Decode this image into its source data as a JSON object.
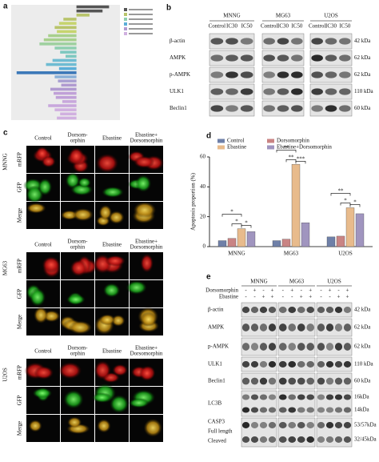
{
  "panel_labels": [
    "a",
    "b",
    "c",
    "d",
    "e"
  ],
  "chart_data": [
    {
      "type": "hbar",
      "values": [
        3,
        2.4,
        1.2,
        -1.2,
        -1.6,
        -2,
        -1.8,
        -2.6,
        -3,
        -3.4,
        -2,
        -1.5,
        -1,
        -2.2,
        -2.8,
        -1.6,
        -5.5,
        -2,
        -1.7,
        -1.4,
        -2.4,
        -2.1,
        -1.9,
        -1.3,
        -2.6,
        -2,
        -1.5,
        -1.8
      ],
      "colors": [
        "#555555",
        "#555555",
        "#b8c46a",
        "#b8c46a",
        "#c6d46e",
        "#b8c46a",
        "#c6d46e",
        "#a8d08d",
        "#a8d08d",
        "#9fd0a0",
        "#8fcfb0",
        "#7ec8c0",
        "#7ec8c0",
        "#6fbcd2",
        "#6fbcd2",
        "#5aaed8",
        "#3b78b8",
        "#8ab0d8",
        "#a9a0d2",
        "#b09ad0",
        "#b09ad0",
        "#c0a0d8",
        "#c0a0d8",
        "#c8a8dc",
        "#c8a8dc",
        "#d0b0e0",
        "#d0b0e0",
        "#d0b0e0"
      ],
      "xlim": [
        -6,
        4
      ]
    },
    {
      "type": "bar",
      "y_label": "Apoptosis proportion (%)",
      "categories": [
        "MNNG",
        "MG63",
        "U2OS"
      ],
      "series": [
        {
          "name": "Control",
          "color": "#6f80a8",
          "values": [
            4,
            4,
            6.5
          ]
        },
        {
          "name": "Dorsomorphin",
          "color": "#c98484",
          "values": [
            5.5,
            5,
            7
          ]
        },
        {
          "name": "Ebastine",
          "color": "#e8bb8c",
          "values": [
            12,
            55,
            26
          ]
        },
        {
          "name": "Ebastine+Dorsomorphin",
          "color": "#a095bf",
          "values": [
            10,
            16,
            22
          ]
        }
      ],
      "ylim": [
        0,
        60
      ],
      "yticks": [
        0,
        20,
        40,
        60
      ],
      "annotations": [
        {
          "category": 0,
          "from": 0,
          "to": 2,
          "text": "*"
        },
        {
          "category": 0,
          "from": 1,
          "to": 2,
          "text": "*"
        },
        {
          "category": 0,
          "from": 2,
          "to": 3,
          "text": "*"
        },
        {
          "category": 1,
          "from": 0,
          "to": 2,
          "text": "**"
        },
        {
          "category": 1,
          "from": 1,
          "to": 2,
          "text": "**"
        },
        {
          "category": 1,
          "from": 2,
          "to": 3,
          "text": "***"
        },
        {
          "category": 2,
          "from": 0,
          "to": 2,
          "text": "**"
        },
        {
          "category": 2,
          "from": 1,
          "to": 2,
          "text": "*"
        },
        {
          "category": 2,
          "from": 2,
          "to": 3,
          "text": "*"
        }
      ]
    }
  ],
  "blot_b": {
    "groups": [
      {
        "name": "MNNG",
        "lanes": [
          "Control",
          "IC30",
          "IC50"
        ]
      },
      {
        "name": "MG63",
        "lanes": [
          "Control",
          "IC30",
          "IC50"
        ]
      },
      {
        "name": "U2OS",
        "lanes": [
          "Control",
          "IC30",
          "IC50"
        ]
      }
    ],
    "rows": [
      {
        "name": "β-actin",
        "kda": "42 kDa"
      },
      {
        "name": "AMPK",
        "kda": "62 kDa"
      },
      {
        "name": "p-AMPK",
        "kda": "62 kDa"
      },
      {
        "name": "ULK1",
        "kda": "110 kDa"
      },
      {
        "name": "Beclin1",
        "kda": "60 kDa"
      }
    ]
  },
  "microscopy_c": {
    "cell_lines": [
      "MNNG",
      "MG63",
      "U2OS"
    ],
    "columns": [
      [
        "Control"
      ],
      [
        "Dorsom-",
        "orphin"
      ],
      [
        "Ebastine"
      ],
      [
        "Ebastine+",
        "Dorsomorphin"
      ]
    ],
    "rows": [
      "mRFP",
      "GFP",
      "Merge"
    ]
  },
  "blot_e": {
    "groups": [
      "MNNG",
      "MG63",
      "U2OS"
    ],
    "treatments": [
      {
        "name": "Dorsomorphin",
        "signs": [
          "-",
          "+",
          "-",
          "+",
          "-",
          "+",
          "-",
          "+",
          "-",
          "+",
          "-",
          "+"
        ]
      },
      {
        "name": "Ebastine",
        "signs": [
          "-",
          "-",
          "+",
          "+",
          "-",
          "-",
          "+",
          "+",
          "-",
          "-",
          "+",
          "+"
        ]
      }
    ],
    "rows": [
      {
        "name": [
          "β-actin"
        ],
        "kda": [
          "42 kDa"
        ]
      },
      {
        "name": [
          "AMPK"
        ],
        "kda": [
          "62 kDa"
        ]
      },
      {
        "name": [
          "p-AMPK"
        ],
        "kda": [
          "62 kDa"
        ]
      },
      {
        "name": [
          "ULK1"
        ],
        "kda": [
          "110 kDa"
        ]
      },
      {
        "name": [
          "Beclin1"
        ],
        "kda": [
          "60 kDa"
        ]
      },
      {
        "name": [
          "LC3B"
        ],
        "kda": [
          "16kDa",
          "14kDa"
        ]
      },
      {
        "name": [
          "CASP3",
          "Full length",
          "Cleaved"
        ],
        "kda": [
          "53/57kDa",
          "32/45kDa"
        ]
      }
    ]
  }
}
